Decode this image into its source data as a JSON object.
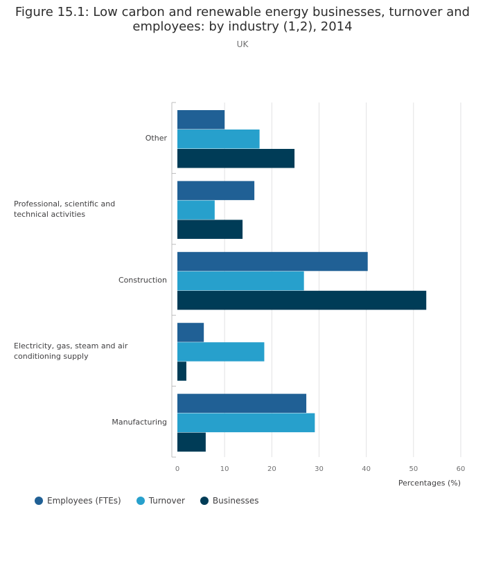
{
  "title_line1": "Figure 15.1: Low carbon and renewable energy businesses, turnover and",
  "title_line2": "employees: by industry (1,2), 2014",
  "subtitle": "UK",
  "chart_data": {
    "type": "bar",
    "orientation": "horizontal",
    "categories": [
      "Other",
      "Professional, scientific and technical activities",
      "Construction",
      "Electricity, gas, steam and air conditioning supply",
      "Manufacturing"
    ],
    "series": [
      {
        "name": "Employees (FTEs)",
        "color": "#206095",
        "values": [
          10,
          16.3,
          40.3,
          5.6,
          27.3
        ]
      },
      {
        "name": "Turnover",
        "color": "#27a0cc",
        "values": [
          17.4,
          7.9,
          26.8,
          18.4,
          29.1
        ]
      },
      {
        "name": "Businesses",
        "color": "#003c57",
        "values": [
          24.8,
          13.8,
          52.7,
          1.9,
          6
        ]
      }
    ],
    "xlabel": "Percentages (%)",
    "xlim": [
      0,
      60
    ],
    "xticks": [
      "0",
      "10",
      "20",
      "30",
      "40",
      "50",
      "60"
    ],
    "grid": true,
    "legend_position": "bottom-left"
  }
}
